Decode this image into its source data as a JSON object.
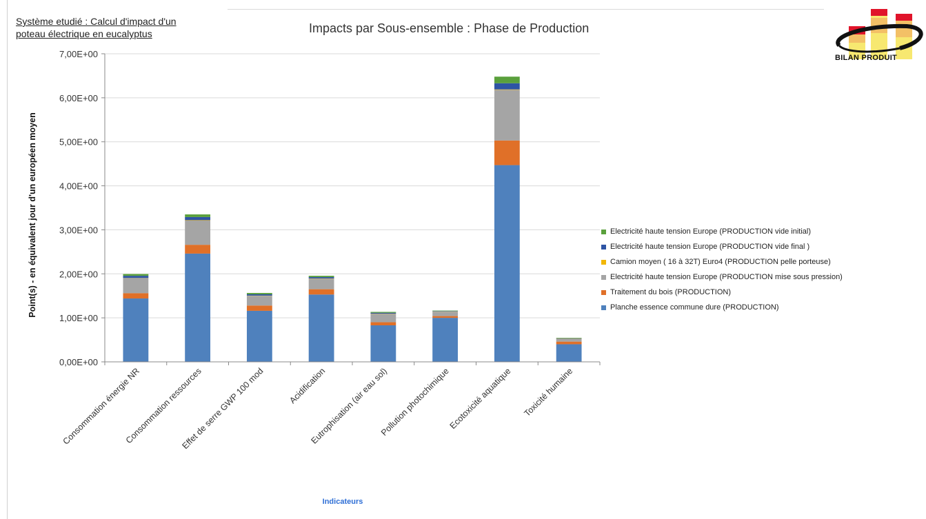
{
  "header": {
    "system_title_line1": "Système etudié : Calcul d'impact d'un",
    "system_title_line2": "poteau électrique en eucalyptus"
  },
  "logo": {
    "text": "BILAN PRODUIT",
    "icon": "bar-chart-logo-icon"
  },
  "chart_data": {
    "type": "bar",
    "stacked": true,
    "title": "Impacts par Sous-ensemble : Phase de Production",
    "xlabel": "Indicateurs",
    "ylabel": "Point(s) - en équivalent jour d'un européen moyen",
    "ylim": [
      0,
      7
    ],
    "yticks": [
      "0,00E+00",
      "1,00E+00",
      "2,00E+00",
      "3,00E+00",
      "4,00E+00",
      "5,00E+00",
      "6,00E+00",
      "7,00E+00"
    ],
    "grid": true,
    "legend_position": "right",
    "categories": [
      "Consommation énergie NR",
      "Consommation ressources",
      "Effet de serre GWP 100 mod",
      "Acidification",
      "Eutrophisation (air eau sol)",
      "Pollution photochimique",
      "Ecotoxicité aquatique",
      "Toxicité humaine"
    ],
    "series": [
      {
        "name": "Planche essence commune dure (PRODUCTION)",
        "color": "#4f81bd",
        "values": [
          1.44,
          2.46,
          1.16,
          1.53,
          0.83,
          1.0,
          4.47,
          0.4
        ]
      },
      {
        "name": "Traitement du bois (PRODUCTION)",
        "color": "#e07028",
        "values": [
          0.12,
          0.2,
          0.12,
          0.12,
          0.07,
          0.04,
          0.56,
          0.06
        ]
      },
      {
        "name": "Electricité haute tension Europe (PRODUCTION mise sous pression)",
        "color": "#a5a5a5",
        "values": [
          0.34,
          0.55,
          0.22,
          0.24,
          0.19,
          0.1,
          1.15,
          0.06
        ]
      },
      {
        "name": "Camion moyen ( 16 à 32T) Euro4 (PRODUCTION pelle porteuse)",
        "color": "#f2b705",
        "values": [
          0.005,
          0.01,
          0.005,
          0.005,
          0.005,
          0.005,
          0.01,
          0.005
        ]
      },
      {
        "name": "Electricité haute tension Europe (PRODUCTION vide final )",
        "color": "#2e54a4",
        "values": [
          0.05,
          0.07,
          0.03,
          0.03,
          0.02,
          0.01,
          0.14,
          0.01
        ]
      },
      {
        "name": "Electricité haute tension Europe (PRODUCTION vide initial)",
        "color": "#5aa03c",
        "values": [
          0.04,
          0.06,
          0.03,
          0.03,
          0.02,
          0.01,
          0.15,
          0.01
        ]
      }
    ]
  }
}
